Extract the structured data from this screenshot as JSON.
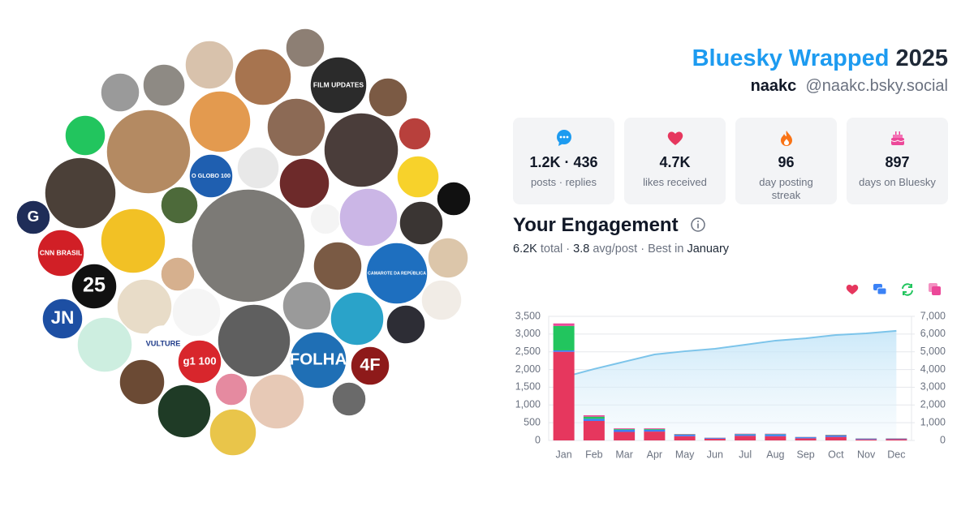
{
  "logos": [
    "FILM UPDATES",
    "O GLOBO 100",
    "G",
    "CNN BRASIL",
    "CAMAROTE DA REPÚBLICA",
    "25",
    "JN",
    "VULTURE",
    "FOLHA",
    "4F",
    "g1 100"
  ],
  "header": {
    "title": "Bluesky Wrapped",
    "year": "2025",
    "name": "naakc",
    "handle": "@naakc.bsky.social"
  },
  "stats": [
    {
      "value": "1.2K · 436",
      "label": "posts · replies"
    },
    {
      "value": "4.7K",
      "label": "likes received"
    },
    {
      "value": "96",
      "label": "day posting streak"
    },
    {
      "value": "897",
      "label": "days on Bluesky"
    }
  ],
  "engagement": {
    "title": "Your Engagement",
    "summary": [
      "6.2K",
      " total · ",
      "3.8",
      " avg/post · Best in ",
      "January"
    ]
  },
  "chart_data": {
    "type": "bar",
    "stacked": true,
    "categories": [
      "Jan",
      "Feb",
      "Mar",
      "Apr",
      "May",
      "Jun",
      "Jul",
      "Aug",
      "Sep",
      "Oct",
      "Nov",
      "Dec"
    ],
    "series": [
      {
        "color": "#e6375e",
        "values": [
          2500,
          550,
          240,
          250,
          120,
          50,
          130,
          120,
          60,
          100,
          30,
          35
        ]
      },
      {
        "color": "#3b82f6",
        "values": [
          40,
          60,
          60,
          50,
          40,
          20,
          40,
          50,
          30,
          40,
          20,
          15
        ]
      },
      {
        "color": "#22c55e",
        "values": [
          690,
          60,
          20,
          20,
          10,
          5,
          10,
          10,
          5,
          10,
          5,
          5
        ]
      },
      {
        "color": "#ec4899",
        "values": [
          70,
          40,
          20,
          20,
          10,
          5,
          10,
          10,
          5,
          10,
          5,
          5
        ]
      },
      {
        "type": "area",
        "axis": "y2",
        "color": "#7cc4ea",
        "values": [
          3570,
          4030,
          4440,
          4850,
          5030,
          5170,
          5400,
          5630,
          5760,
          5950,
          6040,
          6180
        ]
      }
    ],
    "ylim": [
      0,
      3500
    ],
    "yticks": [
      0,
      500,
      {
        "value": 1000,
        "label": "1,000"
      },
      {
        "value": 1500,
        "label": "1,500"
      },
      {
        "value": 2000,
        "label": "2,000"
      },
      {
        "value": 2500,
        "label": "2,500"
      },
      {
        "value": 3000,
        "label": "3,000"
      },
      {
        "value": 3500,
        "label": "3,500"
      }
    ],
    "y2lim": [
      0,
      7000
    ],
    "y2ticks": [
      0,
      {
        "value": 1000,
        "label": "1,000"
      },
      {
        "value": 2000,
        "label": "2,000"
      },
      {
        "value": 3000,
        "label": "3,000"
      },
      {
        "value": 4000,
        "label": "4,000"
      },
      {
        "value": 5000,
        "label": "5,000"
      },
      {
        "value": 6000,
        "label": "6,000"
      },
      {
        "value": 7000,
        "label": "7,000"
      }
    ],
    "grid": true
  }
}
